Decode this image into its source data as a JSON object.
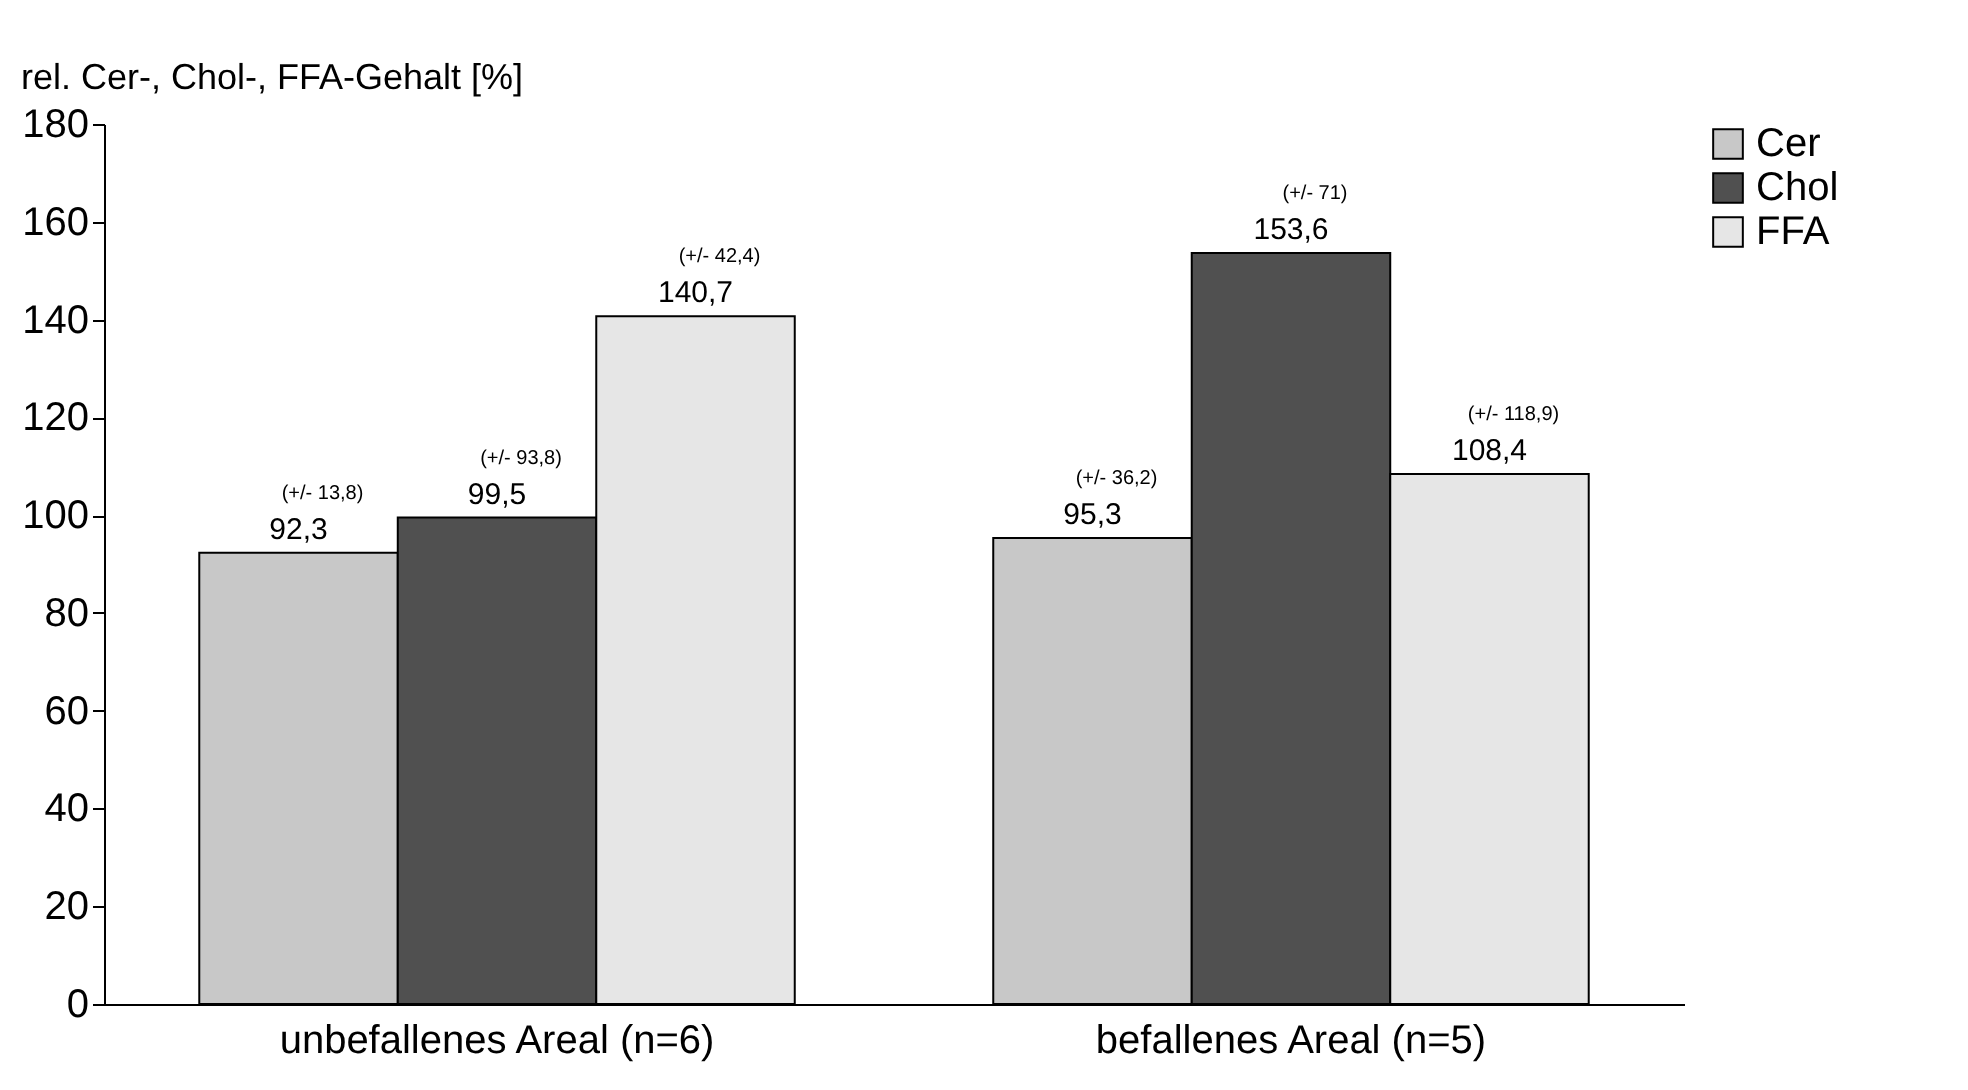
{
  "chart_data": {
    "type": "bar",
    "ylabel": "rel. Cer-, Chol-, FFA-Gehalt [%]",
    "categories": [
      "unbefallenes Areal (n=6)",
      "befallenes Areal (n=5)"
    ],
    "series": [
      {
        "name": "Cer",
        "color": "#c8c8c8",
        "values": [
          92.3,
          95.3
        ],
        "value_labels": [
          "92,3",
          "95,3"
        ]
      },
      {
        "name": "Chol",
        "color": "#505050",
        "values": [
          99.5,
          153.6
        ],
        "value_labels": [
          "99,5",
          "153,6"
        ]
      },
      {
        "name": "FFA",
        "color": "#e6e6e6",
        "values": [
          140.7,
          108.4
        ],
        "value_labels": [
          "140,7",
          "108,4"
        ]
      }
    ],
    "annotations": [
      "(+/- 13,8)",
      "(+/- 93,8)",
      "(+/- 42,4)",
      "(+/- 36,2)",
      "(+/- 71)",
      "(+/- 118,9)"
    ],
    "ylim": [
      0,
      180
    ],
    "yticks": [
      0,
      20,
      40,
      60,
      80,
      100,
      120,
      140,
      160,
      180
    ],
    "grid": false,
    "legend": "right"
  }
}
